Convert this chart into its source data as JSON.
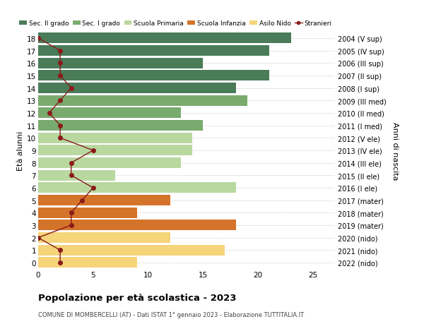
{
  "ages": [
    18,
    17,
    16,
    15,
    14,
    13,
    12,
    11,
    10,
    9,
    8,
    7,
    6,
    5,
    4,
    3,
    2,
    1,
    0
  ],
  "right_labels": [
    "2004 (V sup)",
    "2005 (IV sup)",
    "2006 (III sup)",
    "2007 (II sup)",
    "2008 (I sup)",
    "2009 (III med)",
    "2010 (II med)",
    "2011 (I med)",
    "2012 (V ele)",
    "2013 (IV ele)",
    "2014 (III ele)",
    "2015 (II ele)",
    "2016 (I ele)",
    "2017 (mater)",
    "2018 (mater)",
    "2019 (mater)",
    "2020 (nido)",
    "2021 (nido)",
    "2022 (nido)"
  ],
  "bar_values": [
    23,
    21,
    15,
    21,
    18,
    19,
    13,
    15,
    14,
    14,
    13,
    7,
    18,
    12,
    9,
    18,
    12,
    17,
    9
  ],
  "bar_colors": [
    "#4a7c59",
    "#4a7c59",
    "#4a7c59",
    "#4a7c59",
    "#4a7c59",
    "#7aab6e",
    "#7aab6e",
    "#7aab6e",
    "#b8d8a0",
    "#b8d8a0",
    "#b8d8a0",
    "#b8d8a0",
    "#b8d8a0",
    "#d4732a",
    "#d4732a",
    "#d4732a",
    "#f5d47a",
    "#f5d47a",
    "#f5d47a"
  ],
  "stranieri_values": [
    0,
    2,
    2,
    2,
    3,
    2,
    1,
    2,
    2,
    5,
    3,
    3,
    5,
    4,
    3,
    3,
    0,
    2,
    2
  ],
  "legend_labels": [
    "Sec. II grado",
    "Sec. I grado",
    "Scuola Primaria",
    "Scuola Infanzia",
    "Asilo Nido",
    "Stranieri"
  ],
  "legend_colors": [
    "#4a7c59",
    "#7aab6e",
    "#b8d8a0",
    "#d4732a",
    "#f5d47a",
    "#8b1a1a"
  ],
  "title": "Popolazione per età scolastica - 2023",
  "subtitle": "COMUNE DI MOMBERCELLI (AT) - Dati ISTAT 1° gennaio 2023 - Elaborazione TUTTITALIA.IT",
  "ylabel_left": "Età alunni",
  "ylabel_right": "Anni di nascita",
  "background_color": "#ffffff",
  "grid_color": "#cccccc",
  "stranieri_line_color": "#8b1a1a",
  "stranieri_marker_color": "#8b1a1a"
}
